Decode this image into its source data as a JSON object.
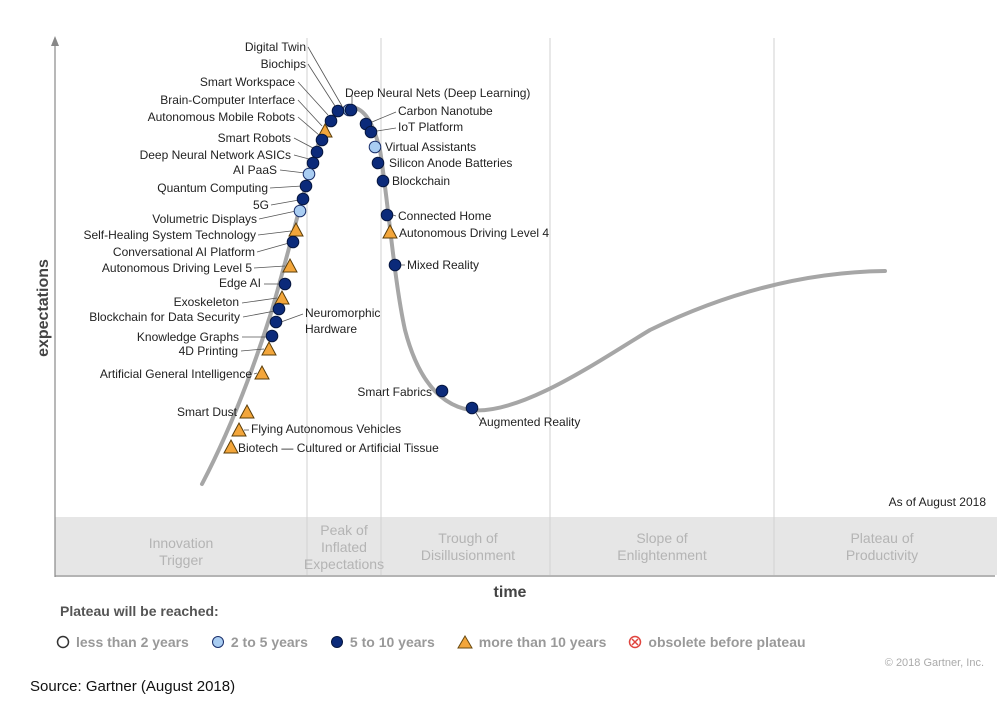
{
  "axes": {
    "y_label": "expectations",
    "x_label": "time"
  },
  "as_of": "As of August 2018",
  "phases": [
    {
      "lines": [
        "Innovation",
        "Trigger"
      ]
    },
    {
      "lines": [
        "Peak of",
        "Inflated",
        "Expectations"
      ]
    },
    {
      "lines": [
        "Trough of",
        "Disillusionment"
      ]
    },
    {
      "lines": [
        "Slope of",
        "Enlightenment"
      ]
    },
    {
      "lines": [
        "Plateau of",
        "Productivity"
      ]
    }
  ],
  "legend": {
    "title": "Plateau will be reached:",
    "items": [
      {
        "label": "less than 2 years",
        "marker": "circle-white"
      },
      {
        "label": "2 to 5 years",
        "marker": "circle-light"
      },
      {
        "label": "5 to 10 years",
        "marker": "circle-dark"
      },
      {
        "label": "more than 10 years",
        "marker": "triangle"
      },
      {
        "label": "obsolete before plateau",
        "marker": "obsolete"
      }
    ]
  },
  "colors": {
    "curve": "#a6a6a6",
    "dark_blue": "#0b2a7a",
    "light_blue": "#a9cdf2",
    "triangle": "#f3a63b",
    "obsolete": "#e0443e",
    "band": "#e6e6e6"
  },
  "copyright": "© 2018 Gartner, Inc.",
  "source": "Source: Gartner (August 2018)",
  "technologies": [
    {
      "name": "Digital Twin",
      "marker": "circle-light"
    },
    {
      "name": "Biochips",
      "marker": "circle-dark"
    },
    {
      "name": "Smart Workspace",
      "marker": "circle-dark"
    },
    {
      "name": "Brain-Computer Interface",
      "marker": "triangle"
    },
    {
      "name": "Autonomous Mobile Robots",
      "marker": "circle-dark"
    },
    {
      "name": "Smart Robots",
      "marker": "circle-dark"
    },
    {
      "name": "Deep Neural Network ASICs",
      "marker": "circle-dark"
    },
    {
      "name": "AI PaaS",
      "marker": "circle-light"
    },
    {
      "name": "Quantum Computing",
      "marker": "circle-dark"
    },
    {
      "name": "5G",
      "marker": "circle-dark"
    },
    {
      "name": "Volumetric Displays",
      "marker": "circle-light"
    },
    {
      "name": "Self-Healing System Technology",
      "marker": "triangle"
    },
    {
      "name": "Conversational AI Platform",
      "marker": "circle-dark"
    },
    {
      "name": "Autonomous Driving Level 5",
      "marker": "triangle"
    },
    {
      "name": "Edge AI",
      "marker": "circle-dark"
    },
    {
      "name": "Exoskeleton",
      "marker": "triangle"
    },
    {
      "name": "Blockchain for Data Security",
      "marker": "circle-dark"
    },
    {
      "name": "Neuromorphic Hardware",
      "marker": "circle-dark"
    },
    {
      "name": "Knowledge Graphs",
      "marker": "circle-dark"
    },
    {
      "name": "4D Printing",
      "marker": "triangle"
    },
    {
      "name": "Artificial General Intelligence",
      "marker": "triangle"
    },
    {
      "name": "Smart Dust",
      "marker": "triangle"
    },
    {
      "name": "Flying Autonomous Vehicles",
      "marker": "triangle"
    },
    {
      "name": "Biotech — Cultured or Artificial Tissue",
      "marker": "triangle"
    },
    {
      "name": "Deep Neural Nets (Deep Learning)",
      "marker": "circle-dark"
    },
    {
      "name": "Carbon Nanotube",
      "marker": "circle-dark"
    },
    {
      "name": "IoT Platform",
      "marker": "circle-dark"
    },
    {
      "name": "Virtual Assistants",
      "marker": "circle-light"
    },
    {
      "name": "Silicon Anode Batteries",
      "marker": "circle-dark"
    },
    {
      "name": "Blockchain",
      "marker": "circle-dark"
    },
    {
      "name": "Connected Home",
      "marker": "circle-dark"
    },
    {
      "name": "Autonomous Driving Level 4",
      "marker": "triangle"
    },
    {
      "name": "Mixed Reality",
      "marker": "circle-dark"
    },
    {
      "name": "Smart Fabrics",
      "marker": "circle-dark"
    },
    {
      "name": "Augmented Reality",
      "marker": "circle-dark"
    }
  ]
}
